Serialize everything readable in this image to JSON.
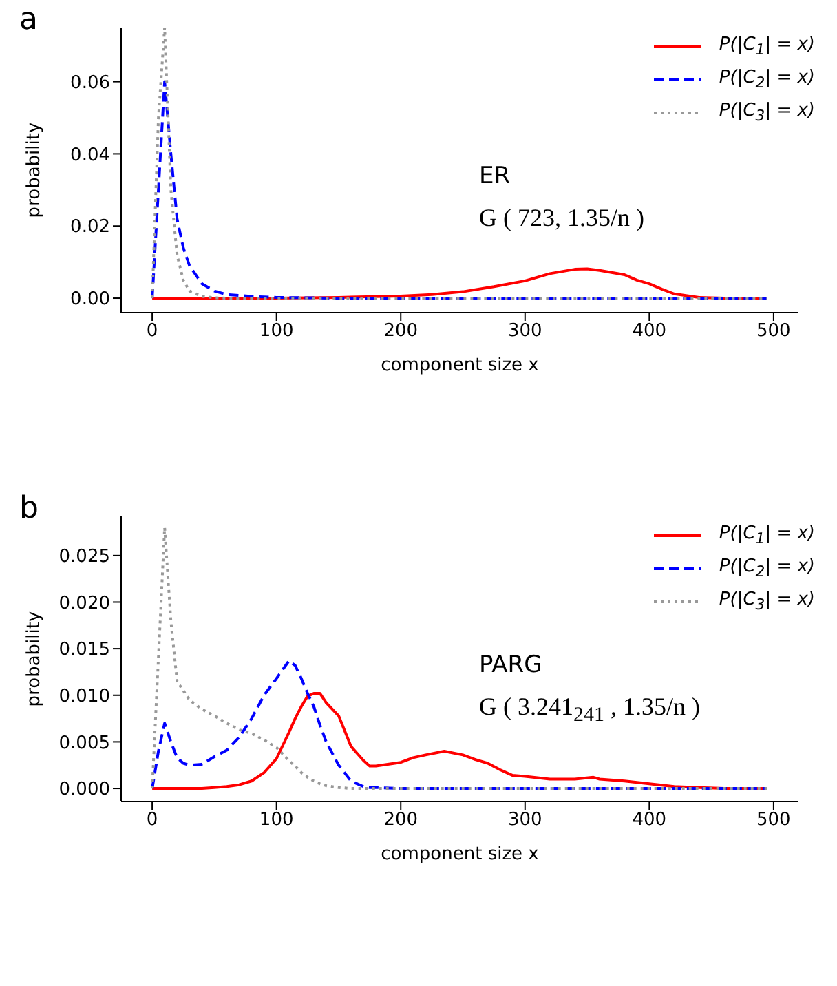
{
  "chart_data": [
    {
      "type": "line",
      "title": "a",
      "xlabel": "component size x",
      "ylabel": "probability",
      "annotations": [
        "ER",
        "G ( 723, 1.35/n )"
      ],
      "legend": "top right",
      "xlim": [
        -25,
        520
      ],
      "xticks": [
        0,
        100,
        200,
        300,
        400,
        500
      ],
      "ylim": [
        -0.004,
        0.075
      ],
      "yticks": [
        {
          "value": 0,
          "label": "0.00"
        },
        {
          "value": 0.02,
          "label": "0.02"
        },
        {
          "value": 0.04,
          "label": "0.04"
        },
        {
          "value": 0.06,
          "label": "0.06"
        }
      ],
      "x": [
        0,
        5,
        10,
        15,
        20,
        25,
        30,
        40,
        50,
        60,
        80,
        100,
        150,
        200,
        225,
        250,
        275,
        300,
        320,
        340,
        350,
        360,
        380,
        390,
        400,
        410,
        420,
        440,
        460,
        495
      ],
      "series": [
        {
          "name": "P(|C$_{1}$| = x)",
          "color": "#ff0000",
          "line_style": "solid",
          "values": [
            0,
            0,
            0,
            0,
            0,
            0,
            0,
            0,
            0,
            0,
            0,
            0,
            0.0002,
            0.0006,
            0.001,
            0.0018,
            0.0032,
            0.0048,
            0.0068,
            0.008,
            0.0081,
            0.0077,
            0.0065,
            0.005,
            0.004,
            0.0025,
            0.0012,
            0.0002,
            0,
            0
          ]
        },
        {
          "name": "P(|C$_{2}$| = x)",
          "color": "#0000ff",
          "line_style": "dashed",
          "values": [
            0,
            0.03,
            0.06,
            0.04,
            0.022,
            0.014,
            0.009,
            0.004,
            0.002,
            0.001,
            0.0005,
            0.0002,
            0,
            0,
            0,
            0,
            0,
            0,
            0,
            0,
            0,
            0,
            0,
            0,
            0,
            0,
            0,
            0,
            0,
            0
          ]
        },
        {
          "name": "P(|C$_{3}$| = x)",
          "color": "#999999",
          "line_style": "dotted",
          "values": [
            0,
            0.05,
            0.075,
            0.03,
            0.012,
            0.005,
            0.002,
            0.0005,
            0.0001,
            0,
            0,
            0,
            0,
            0,
            0,
            0,
            0,
            0,
            0,
            0,
            0,
            0,
            0,
            0,
            0,
            0,
            0,
            0,
            0,
            0
          ]
        }
      ]
    },
    {
      "type": "line",
      "title": "b",
      "xlabel": "component size x",
      "ylabel": "probability",
      "annotations": [
        "PARG",
        "G ( 3.241$_{241}$ , 1.35/n )"
      ],
      "legend": "top right",
      "xlim": [
        -25,
        520
      ],
      "xticks": [
        0,
        100,
        200,
        300,
        400,
        500
      ],
      "ylim": [
        -0.0014,
        0.0292
      ],
      "yticks": [
        {
          "value": 0,
          "label": "0.000"
        },
        {
          "value": 0.005,
          "label": "0.005"
        },
        {
          "value": 0.01,
          "label": "0.010"
        },
        {
          "value": 0.015,
          "label": "0.015"
        },
        {
          "value": 0.02,
          "label": "0.020"
        },
        {
          "value": 0.025,
          "label": "0.025"
        }
      ],
      "x": [
        0,
        5,
        10,
        15,
        20,
        25,
        30,
        40,
        50,
        60,
        70,
        80,
        90,
        100,
        110,
        115,
        120,
        125,
        130,
        135,
        140,
        150,
        160,
        170,
        175,
        180,
        200,
        210,
        220,
        235,
        250,
        260,
        270,
        280,
        290,
        300,
        320,
        340,
        355,
        360,
        380,
        400,
        420,
        440,
        460,
        495
      ],
      "series": [
        {
          "name": "P(|C$_{1}$| = x)",
          "color": "#ff0000",
          "line_style": "solid",
          "values": [
            0,
            0,
            0,
            0,
            0,
            0,
            0,
            0,
            0.0001,
            0.0002,
            0.0004,
            0.0008,
            0.0017,
            0.0032,
            0.006,
            0.0075,
            0.0088,
            0.0099,
            0.0102,
            0.0102,
            0.0092,
            0.0078,
            0.0045,
            0.003,
            0.0024,
            0.0024,
            0.0028,
            0.0033,
            0.0036,
            0.004,
            0.0036,
            0.0031,
            0.0027,
            0.002,
            0.0014,
            0.0013,
            0.001,
            0.001,
            0.0012,
            0.001,
            0.0008,
            0.0005,
            0.0002,
            0.0001,
            0,
            0
          ]
        },
        {
          "name": "P(|C$_{2}$| = x)",
          "color": "#0000ff",
          "line_style": "dashed",
          "values": [
            0,
            0.004,
            0.007,
            0.005,
            0.0033,
            0.0027,
            0.0025,
            0.0026,
            0.0034,
            0.0041,
            0.0055,
            0.0075,
            0.01,
            0.0118,
            0.0137,
            0.0132,
            0.0118,
            0.0102,
            0.0088,
            0.0068,
            0.005,
            0.0025,
            0.0008,
            0.0002,
            0.0001,
            0.0001,
            0,
            0,
            0,
            0,
            0,
            0,
            0,
            0,
            0,
            0,
            0,
            0,
            0,
            0,
            0,
            0,
            0,
            0,
            0,
            0
          ]
        },
        {
          "name": "P(|C$_{3}$| = x)",
          "color": "#999999",
          "line_style": "dotted",
          "values": [
            0,
            0.014,
            0.028,
            0.018,
            0.0115,
            0.0105,
            0.0095,
            0.0085,
            0.0078,
            0.007,
            0.0063,
            0.0059,
            0.0052,
            0.0044,
            0.003,
            0.0024,
            0.0017,
            0.0012,
            0.0008,
            0.0005,
            0.0003,
            0.0001,
            0,
            0,
            0,
            0,
            0,
            0,
            0,
            0,
            0,
            0,
            0,
            0,
            0,
            0,
            0,
            0,
            0,
            0,
            0,
            0,
            0,
            0,
            0,
            0
          ]
        }
      ]
    }
  ]
}
